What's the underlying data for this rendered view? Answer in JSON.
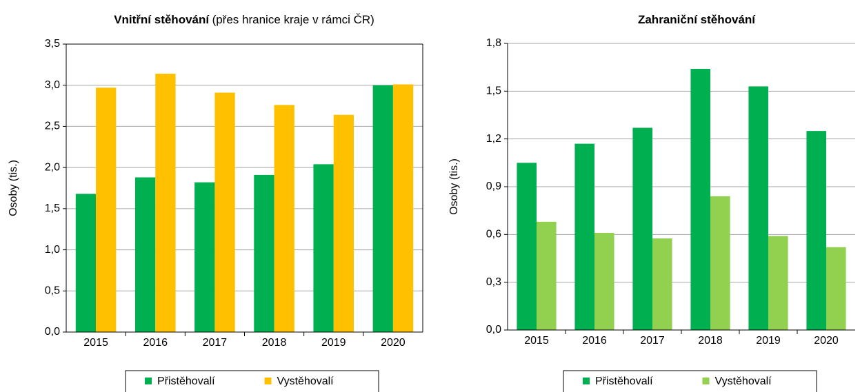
{
  "chart_data": [
    {
      "type": "bar",
      "title": "Vnitřní stěhování",
      "subtitle": "(přes hranice kraje v rámci ČR)",
      "y_label": "Osoby (tis.)",
      "categories": [
        "2015",
        "2016",
        "2017",
        "2018",
        "2019",
        "2020"
      ],
      "series": [
        {
          "name": "Přistěhovalí",
          "color": "#00b050",
          "values": [
            1.68,
            1.88,
            1.82,
            1.91,
            2.04,
            3.0
          ]
        },
        {
          "name": "Vystěhovalí",
          "color": "#ffc000",
          "values": [
            2.97,
            3.14,
            2.91,
            2.76,
            2.64,
            3.01
          ]
        }
      ],
      "ylim": [
        0,
        3.5
      ],
      "yticks": [
        {
          "value": 0,
          "label": "0,0"
        },
        {
          "value": 0.5,
          "label": "0,5"
        },
        {
          "value": 1,
          "label": "1,0"
        },
        {
          "value": 1.5,
          "label": "1,5"
        },
        {
          "value": 2,
          "label": "2,0"
        },
        {
          "value": 2.5,
          "label": "2,5"
        },
        {
          "value": 3,
          "label": "3,0"
        },
        {
          "value": 3.5,
          "label": "3,5"
        }
      ],
      "grid": true,
      "legend": "bottom"
    },
    {
      "type": "bar",
      "title": "Zahraniční stěhování",
      "y_label": "Osoby (tis.)",
      "categories": [
        "2015",
        "2016",
        "2017",
        "2018",
        "2019",
        "2020"
      ],
      "series": [
        {
          "name": "Přistěhovalí",
          "color": "#00b050",
          "values": [
            1.05,
            1.17,
            1.27,
            1.64,
            1.53,
            1.25
          ]
        },
        {
          "name": "Vystěhovalí",
          "color": "#92d050",
          "values": [
            0.68,
            0.61,
            0.575,
            0.84,
            0.59,
            0.52
          ]
        }
      ],
      "ylim": [
        0,
        1.8
      ],
      "yticks": [
        {
          "value": 0,
          "label": "0,0"
        },
        {
          "value": 0.3,
          "label": "0,3"
        },
        {
          "value": 0.6,
          "label": "0,6"
        },
        {
          "value": 0.9,
          "label": "0,9"
        },
        {
          "value": 1.2,
          "label": "1,2"
        },
        {
          "value": 1.5,
          "label": "1,5"
        },
        {
          "value": 1.8,
          "label": "1,8"
        }
      ],
      "grid": true,
      "legend": "bottom"
    }
  ]
}
